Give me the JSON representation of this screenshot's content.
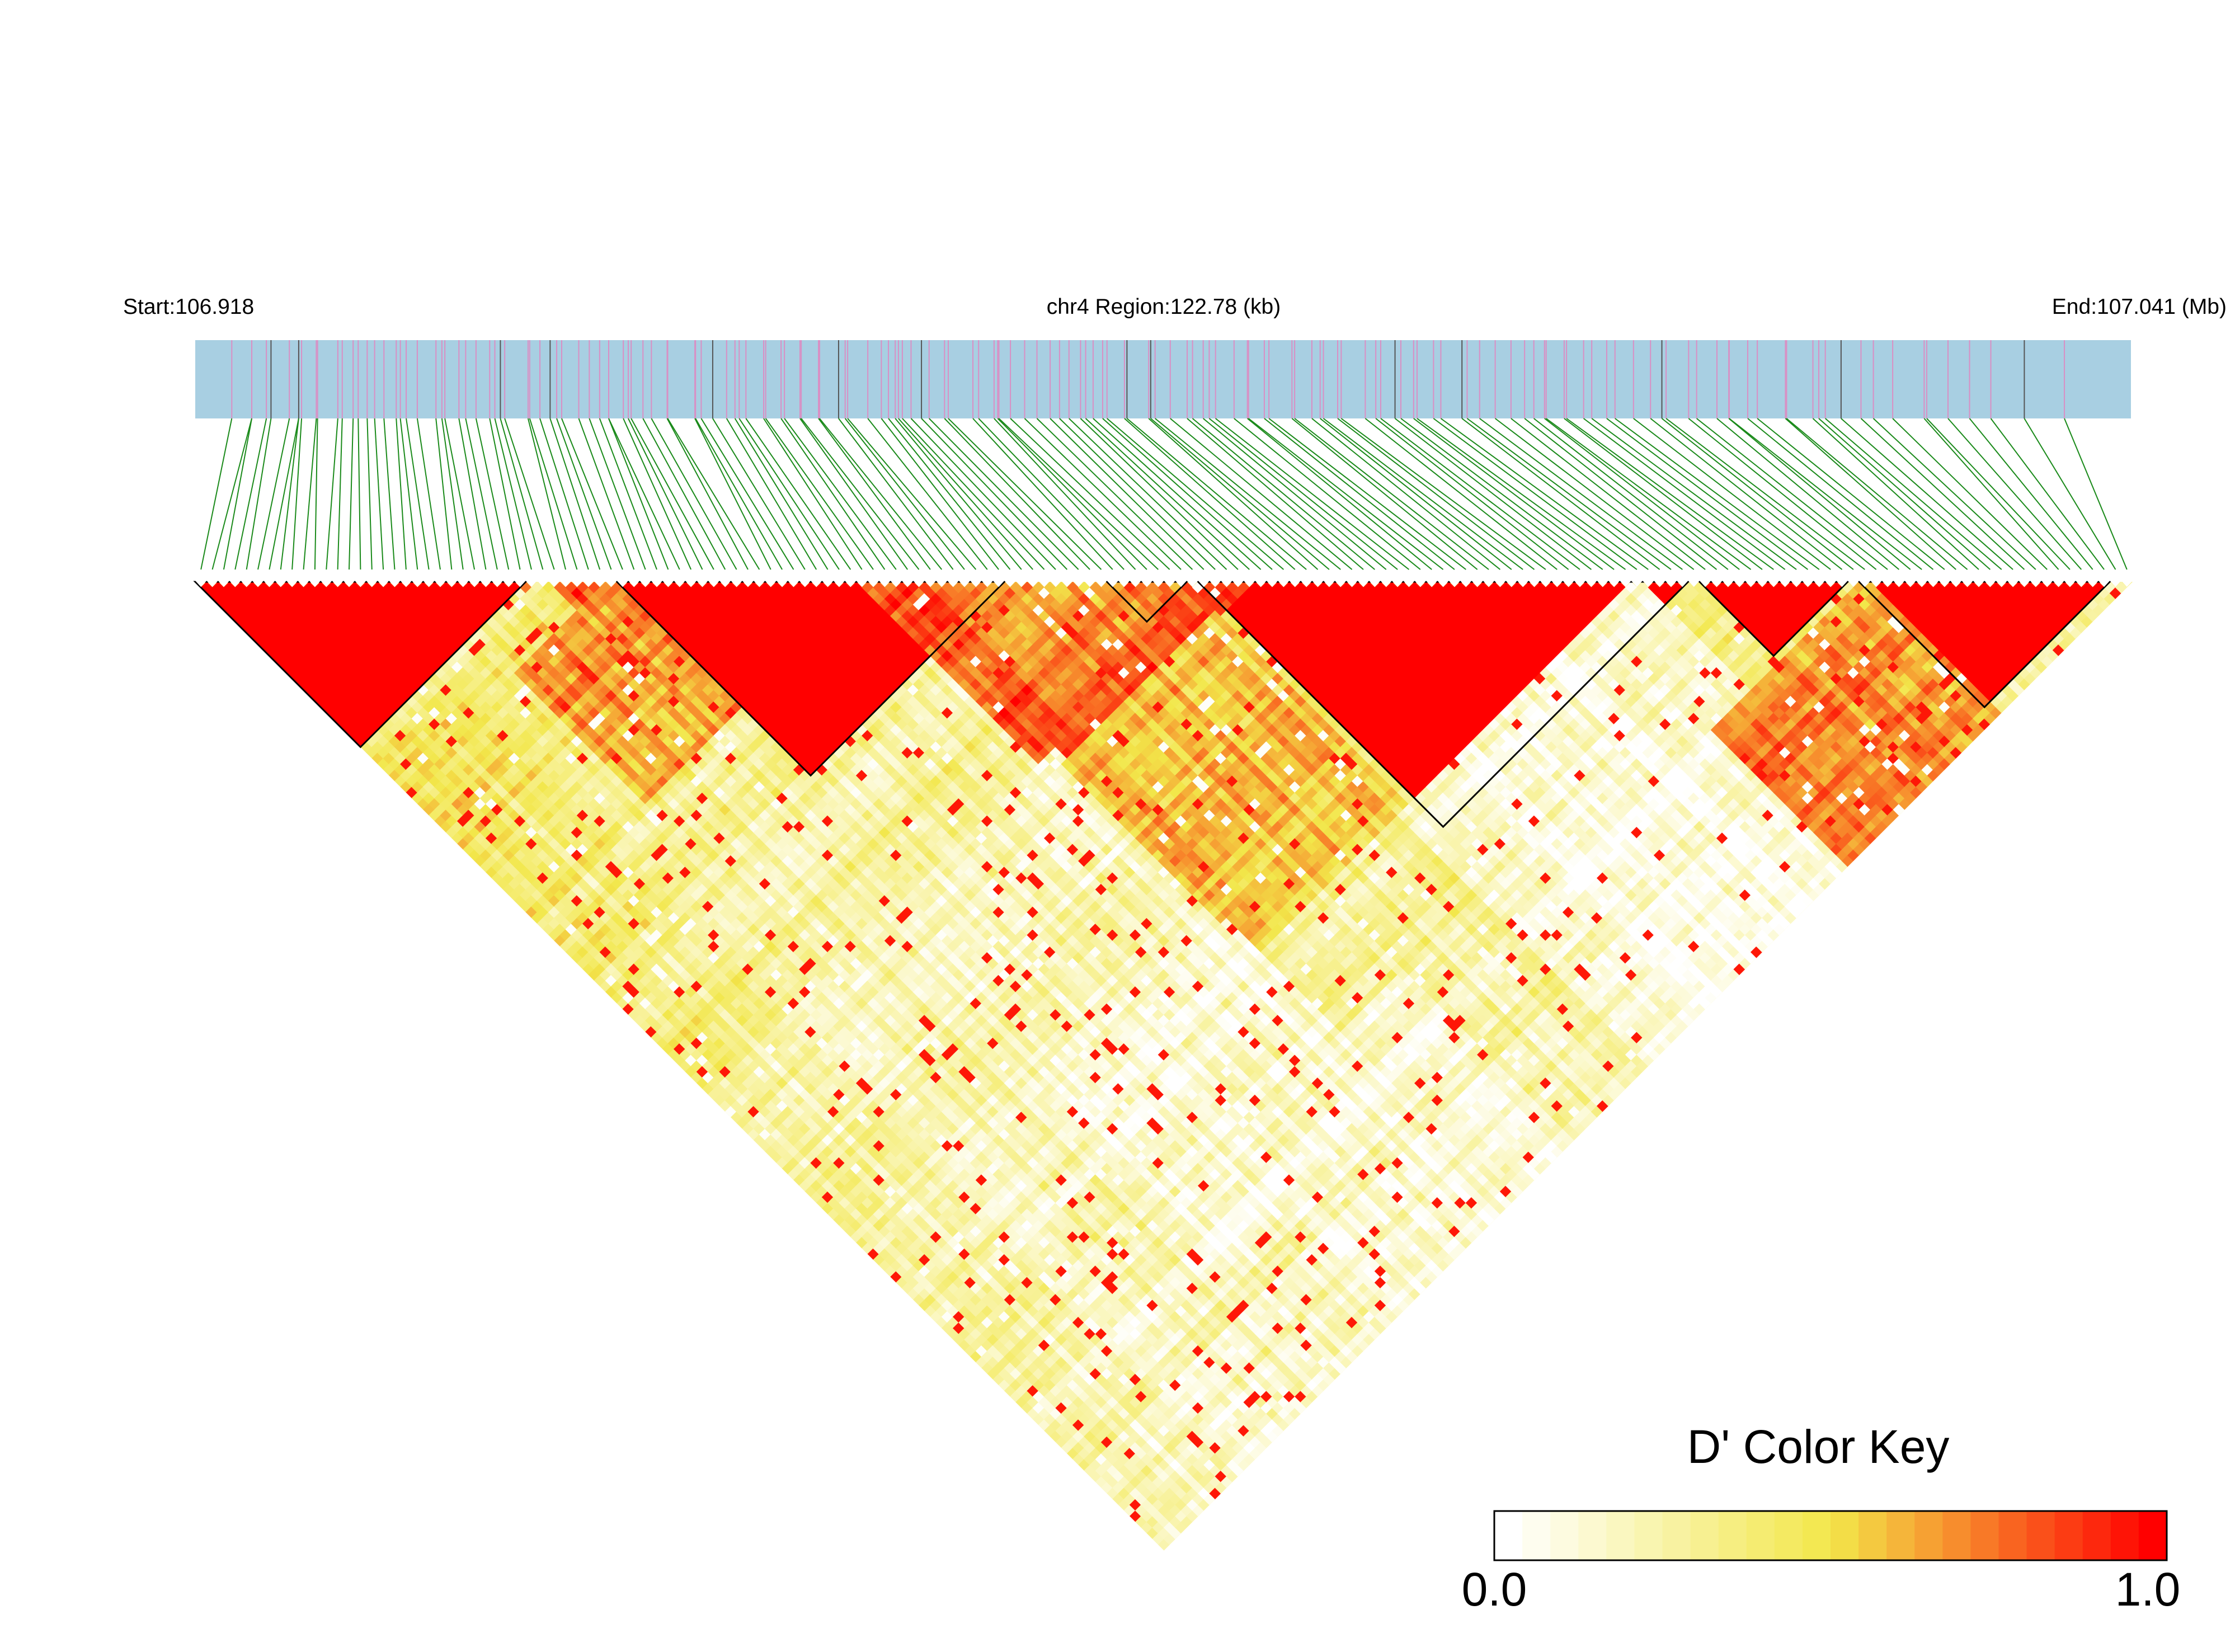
{
  "chart_data": {
    "type": "heatmap",
    "subtype": "LD triangle (D')",
    "header": {
      "start_label": "Start:106.918",
      "region_label": "chr4 Region:122.78 (kb)",
      "end_label": "End:107.041 (Mb)"
    },
    "region": {
      "chromosome": "chr4",
      "start_mb": 106.918,
      "end_mb": 107.041,
      "length_kb": 122.78
    },
    "color_key": {
      "title": "D' Color Key",
      "min_label": "0.0",
      "max_label": "1.0",
      "range": [
        0,
        1
      ],
      "colors": [
        "#ffffff",
        "#f2e74a",
        "#ff0000"
      ]
    },
    "colors": {
      "track_fill": "#a8cfe2",
      "snp_tick": "#d98fc4",
      "snp_tick_dark": "#555555",
      "connector": "#1a8a1a",
      "high_ld": "#ff0000",
      "block_outline": "#000000"
    },
    "snp_count": 170,
    "haplotype_blocks": [
      {
        "first_snp": 0,
        "last_snp": 28
      },
      {
        "first_snp": 37,
        "last_snp": 70
      },
      {
        "first_snp": 80,
        "last_snp": 86
      },
      {
        "first_snp": 88,
        "last_snp": 130
      },
      {
        "first_snp": 132,
        "last_snp": 144
      },
      {
        "first_snp": 146,
        "last_snp": 167
      }
    ],
    "ld_blocks": [
      {
        "a": [
          0,
          28
        ],
        "b": [
          0,
          28
        ],
        "dprime": 1.0
      },
      {
        "a": [
          37,
          70
        ],
        "b": [
          37,
          70
        ],
        "dprime": 1.0
      },
      {
        "a": [
          88,
          130
        ],
        "b": [
          88,
          130
        ],
        "dprime": 1.0
      },
      {
        "a": [
          146,
          167
        ],
        "b": [
          146,
          167
        ],
        "dprime": 1.0
      },
      {
        "a": [
          132,
          144
        ],
        "b": [
          132,
          144
        ],
        "dprime": 1.0
      },
      {
        "a": [
          80,
          86
        ],
        "b": [
          80,
          86
        ],
        "dprime": 0.95
      },
      {
        "a": [
          58,
          92
        ],
        "b": [
          58,
          92
        ],
        "dprime": 0.82
      },
      {
        "a": [
          64,
          86
        ],
        "b": [
          64,
          86
        ],
        "dprime": 0.72
      },
      {
        "a": [
          28,
          37
        ],
        "b": [
          28,
          37
        ],
        "dprime": 0.85
      },
      {
        "a": [
          0,
          30
        ],
        "b": [
          30,
          60
        ],
        "dprime": 0.42
      },
      {
        "a": [
          20,
          36
        ],
        "b": [
          36,
          58
        ],
        "dprime": 0.68
      },
      {
        "a": [
          0,
          20
        ],
        "b": [
          60,
          90
        ],
        "dprime": 0.34
      },
      {
        "a": [
          30,
          60
        ],
        "b": [
          90,
          120
        ],
        "dprime": 0.18
      },
      {
        "a": [
          60,
          86
        ],
        "b": [
          92,
          125
        ],
        "dprime": 0.58
      },
      {
        "a": [
          86,
          126
        ],
        "b": [
          126,
          170
        ],
        "dprime": 0.1
      },
      {
        "a": [
          120,
          146
        ],
        "b": [
          146,
          170
        ],
        "dprime": 0.72
      },
      {
        "a": [
          0,
          30
        ],
        "b": [
          90,
          130
        ],
        "dprime": 0.22
      },
      {
        "a": [
          30,
          60
        ],
        "b": [
          120,
          150
        ],
        "dprime": 0.12
      },
      {
        "a": [
          40,
          70
        ],
        "b": [
          140,
          170
        ],
        "dprime": 0.14
      }
    ]
  }
}
